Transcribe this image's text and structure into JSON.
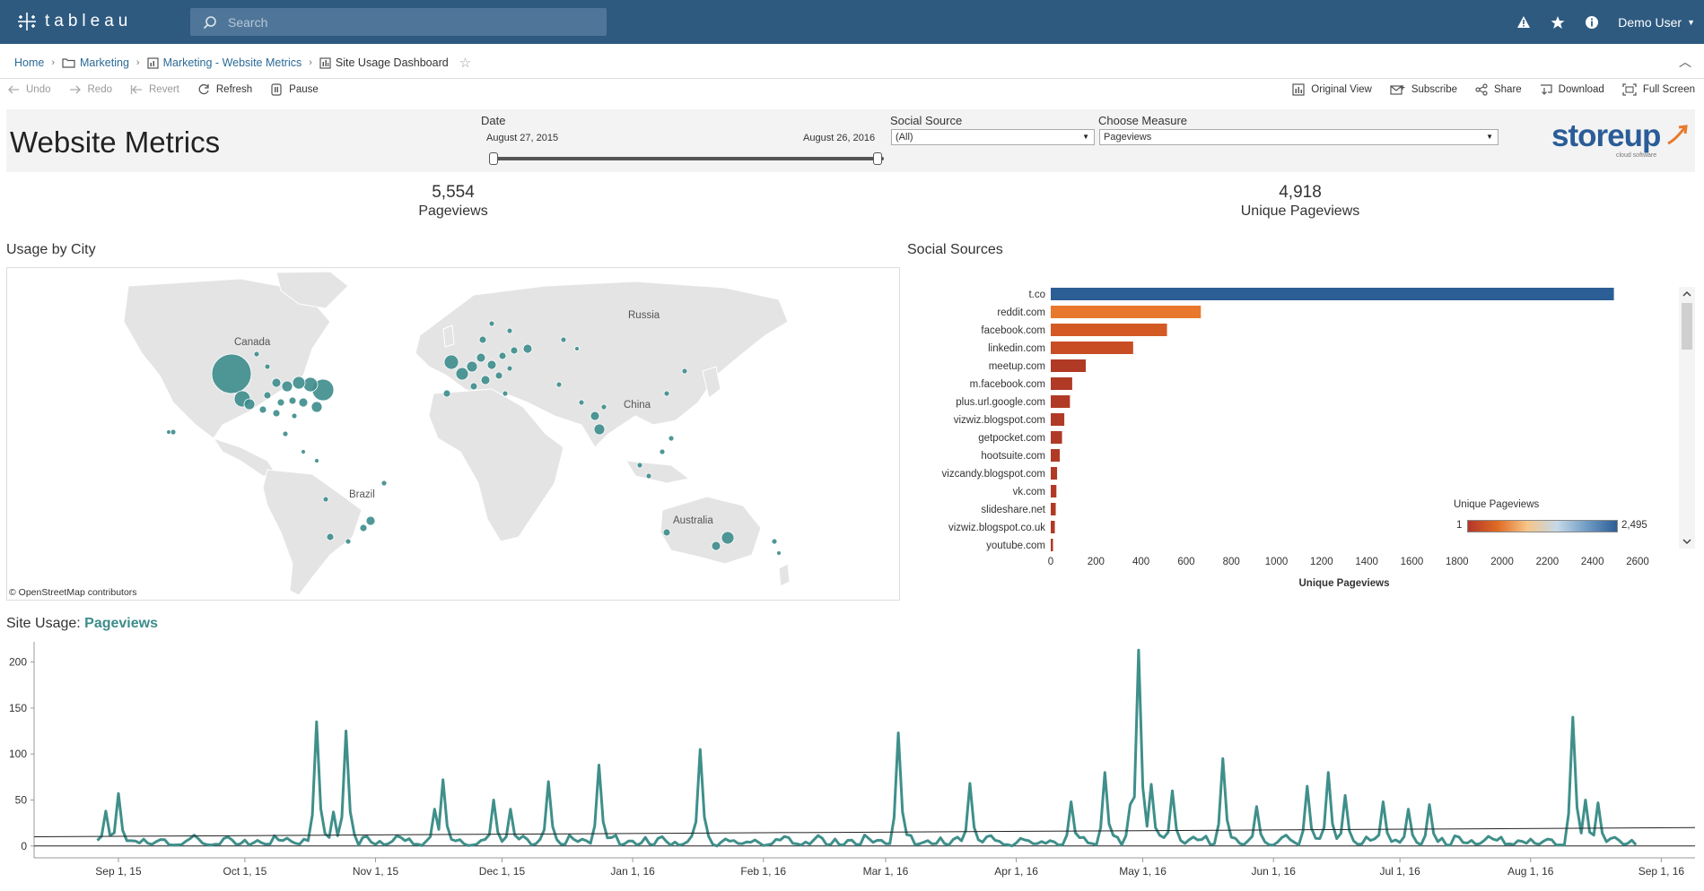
{
  "app": {
    "logo_text": "tableau",
    "search_placeholder": "Search",
    "user_name": "Demo User",
    "icons": [
      "alert-icon",
      "star-icon",
      "info-icon"
    ]
  },
  "breadcrumb": {
    "home": "Home",
    "project": "Marketing",
    "workbook": "Marketing - Website Metrics",
    "view": "Site Usage Dashboard"
  },
  "toolbar": {
    "undo": "Undo",
    "redo": "Redo",
    "revert": "Revert",
    "refresh": "Refresh",
    "pause": "Pause",
    "original_view": "Original View",
    "subscribe": "Subscribe",
    "share": "Share",
    "download": "Download",
    "full_screen": "Full Screen"
  },
  "dashboard": {
    "title": "Website Metrics",
    "filters": {
      "date_label": "Date",
      "date_start": "August 27, 2015",
      "date_end": "August 26, 2016",
      "social_label": "Social Source",
      "social_value": "(All)",
      "measure_label": "Choose Measure",
      "measure_value": "Pageviews"
    },
    "brand": {
      "name": "storeup",
      "tagline": "cloud software"
    },
    "kpis": {
      "pageviews_value": "5,554",
      "pageviews_label": "Pageviews",
      "unique_value": "4,918",
      "unique_label": "Unique Pageviews"
    },
    "map": {
      "title": "Usage by City",
      "labels": [
        "Canada",
        "Russia",
        "China",
        "Brazil",
        "Australia"
      ],
      "credit": "© OpenStreetMap contributors"
    },
    "social": {
      "title": "Social Sources",
      "legend_title": "Unique Pageviews",
      "legend_min": "1",
      "legend_max": "2,495"
    },
    "site_usage": {
      "title_prefix": "Site Usage: ",
      "title_measure": "Pageviews"
    }
  },
  "chart_data": [
    {
      "type": "bar",
      "orientation": "horizontal",
      "title": "Social Sources",
      "xlabel": "Unique Pageviews",
      "categories": [
        "t.co",
        "reddit.com",
        "facebook.com",
        "linkedin.com",
        "meetup.com",
        "m.facebook.com",
        "plus.url.google.com",
        "vizwiz.blogspot.com",
        "getpocket.com",
        "hootsuite.com",
        "vizcandy.blogspot.com",
        "vk.com",
        "slideshare.net",
        "vizwiz.blogspot.co.uk",
        "youtube.com"
      ],
      "values": [
        2495,
        665,
        515,
        365,
        155,
        95,
        85,
        60,
        50,
        40,
        28,
        25,
        22,
        18,
        10
      ],
      "xlim": [
        0,
        2600
      ],
      "xticks": [
        0,
        200,
        400,
        600,
        800,
        1000,
        1200,
        1400,
        1600,
        1800,
        2000,
        2200,
        2400,
        2600
      ],
      "colors": {
        "max": "#2c5e96",
        "high": "#e8782b",
        "low": "#b03a26"
      }
    },
    {
      "type": "line",
      "title": "Site Usage: Pageviews",
      "ylim": [
        -8,
        222
      ],
      "yticks": [
        0,
        50,
        100,
        150,
        200
      ],
      "xticks": [
        "Sep 1, 15",
        "Oct 1, 15",
        "Nov 1, 15",
        "Dec 1, 15",
        "Jan 1, 16",
        "Feb 1, 16",
        "Mar 1, 16",
        "Apr 1, 16",
        "May 1, 16",
        "Jun 1, 16",
        "Jul 1, 16",
        "Aug 1, 16",
        "Sep 1, 16"
      ],
      "x_start": "2015-08-27",
      "x_end": "2016-08-26",
      "trend": [
        10,
        20
      ],
      "color": "#3f8f8a",
      "peaks": [
        [
          "2015-08-29",
          38
        ],
        [
          "2015-09-01",
          57
        ],
        [
          "2015-10-18",
          135
        ],
        [
          "2015-10-22",
          37
        ],
        [
          "2015-10-25",
          125
        ],
        [
          "2015-11-15",
          40
        ],
        [
          "2015-11-17",
          72
        ],
        [
          "2015-11-29",
          50
        ],
        [
          "2015-12-03",
          40
        ],
        [
          "2015-12-12",
          70
        ],
        [
          "2015-12-24",
          88
        ],
        [
          "2016-01-17",
          105
        ],
        [
          "2016-03-04",
          123
        ],
        [
          "2016-03-21",
          68
        ],
        [
          "2016-04-14",
          48
        ],
        [
          "2016-04-22",
          80
        ],
        [
          "2016-04-28",
          45
        ],
        [
          "2016-04-30",
          213
        ],
        [
          "2016-05-03",
          67
        ],
        [
          "2016-05-08",
          60
        ],
        [
          "2016-05-20",
          95
        ],
        [
          "2016-05-28",
          43
        ],
        [
          "2016-06-09",
          65
        ],
        [
          "2016-06-14",
          80
        ],
        [
          "2016-06-18",
          55
        ],
        [
          "2016-06-27",
          48
        ],
        [
          "2016-07-03",
          40
        ],
        [
          "2016-07-08",
          45
        ],
        [
          "2016-08-11",
          140
        ],
        [
          "2016-08-14",
          50
        ],
        [
          "2016-08-17",
          47
        ]
      ]
    }
  ]
}
